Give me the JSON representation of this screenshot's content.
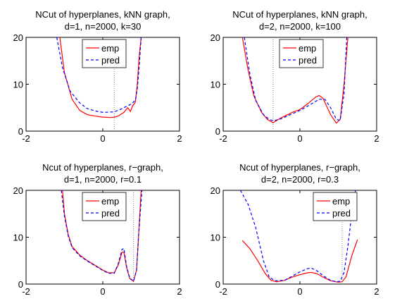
{
  "colors": {
    "emp": "#ff0000",
    "pred": "#0000ff",
    "vline": "#888888"
  },
  "chart_data": [
    {
      "type": "line",
      "title": [
        "NCut of hyperplanes, kNN graph,",
        "d=1, n=2000, k=30"
      ],
      "xlim": [
        -2,
        2
      ],
      "ylim": [
        0,
        20
      ],
      "xticks": [
        -2,
        0,
        2
      ],
      "yticks": [
        0,
        10,
        20
      ],
      "vline": 0.3,
      "legend": "top-center",
      "series": [
        {
          "name": "emp",
          "style": "solid",
          "x": [
            -1.12,
            -1.0,
            -0.8,
            -0.6,
            -0.4,
            -0.2,
            0.0,
            0.2,
            0.3,
            0.4,
            0.55,
            0.65,
            0.72,
            0.78,
            0.85,
            0.9,
            0.95,
            1.0
          ],
          "y": [
            20,
            12.5,
            6.8,
            4.4,
            3.5,
            3.2,
            3.0,
            2.9,
            3.0,
            3.2,
            4.0,
            5.0,
            4.2,
            5.4,
            6.2,
            10,
            16,
            20
          ]
        },
        {
          "name": "pred",
          "style": "dashed",
          "x": [
            -1.2,
            -1.05,
            -0.85,
            -0.6,
            -0.4,
            -0.2,
            0.0,
            0.3,
            0.45,
            0.6,
            0.75,
            0.85,
            0.9,
            0.95,
            1.0
          ],
          "y": [
            20,
            13.5,
            8.5,
            6.0,
            4.8,
            4.3,
            4.0,
            4.1,
            4.6,
            5.2,
            5.8,
            6.6,
            9,
            14,
            20
          ]
        }
      ]
    },
    {
      "type": "line",
      "title": [
        "NCut of hyperplanes, kNN graph,",
        "d=2, n=2000, k=100"
      ],
      "xlim": [
        -2,
        2
      ],
      "ylim": [
        0,
        20
      ],
      "xticks": [
        -2,
        0,
        2
      ],
      "yticks": [
        0,
        10,
        20
      ],
      "vline": -0.7,
      "legend": "top-center",
      "series": [
        {
          "name": "emp",
          "style": "solid",
          "x": [
            -1.5,
            -1.35,
            -1.2,
            -1.0,
            -0.85,
            -0.7,
            -0.5,
            -0.2,
            0.0,
            0.2,
            0.4,
            0.5,
            0.6,
            0.8,
            0.95,
            1.05,
            1.15,
            1.25
          ],
          "y": [
            20,
            13,
            7.5,
            4.0,
            2.5,
            1.8,
            2.8,
            4.0,
            4.6,
            5.8,
            7.2,
            7.6,
            7.0,
            3.5,
            1.7,
            2.5,
            10,
            20
          ]
        },
        {
          "name": "pred",
          "style": "dashed",
          "x": [
            -1.45,
            -1.3,
            -1.15,
            -0.95,
            -0.8,
            -0.7,
            -0.5,
            -0.2,
            0.0,
            0.3,
            0.5,
            0.65,
            0.8,
            0.95,
            1.05,
            1.15,
            1.22
          ],
          "y": [
            20,
            12,
            6.5,
            3.5,
            2.5,
            2.2,
            2.6,
            3.7,
            4.4,
            5.8,
            6.8,
            6.8,
            5.0,
            2.5,
            2.3,
            8,
            20
          ]
        }
      ]
    },
    {
      "type": "line",
      "title": [
        "Ncut of hyperplanes, r−graph,",
        "d=1, n=2000, r=0.1"
      ],
      "xlim": [
        -2,
        2
      ],
      "ylim": [
        0,
        20
      ],
      "xticks": [
        -2,
        0,
        2
      ],
      "yticks": [
        0,
        10,
        20
      ],
      "vline": 0.8,
      "legend": "top-center",
      "series": [
        {
          "name": "emp",
          "style": "solid",
          "x": [
            -1.05,
            -1.0,
            -0.9,
            -0.8,
            -0.6,
            -0.4,
            -0.2,
            0.0,
            0.15,
            0.3,
            0.4,
            0.5,
            0.55,
            0.62,
            0.7,
            0.8,
            0.88,
            0.93,
            1.0
          ],
          "y": [
            20,
            15,
            10.5,
            8.0,
            6.2,
            5.0,
            4.0,
            3.0,
            2.4,
            2.4,
            4.0,
            6.8,
            6.8,
            3.5,
            1.2,
            0.6,
            3.0,
            10,
            20
          ]
        },
        {
          "name": "pred",
          "style": "dashed",
          "x": [
            -1.08,
            -1.0,
            -0.9,
            -0.8,
            -0.6,
            -0.4,
            -0.2,
            0.0,
            0.15,
            0.3,
            0.4,
            0.5,
            0.55,
            0.62,
            0.7,
            0.8,
            0.88,
            0.93,
            1.02
          ],
          "y": [
            20,
            14.5,
            10.2,
            7.8,
            6.0,
            4.9,
            3.9,
            2.9,
            2.3,
            2.3,
            4.3,
            7.4,
            7.6,
            3.8,
            1.3,
            0.6,
            3.0,
            10,
            20
          ]
        }
      ]
    },
    {
      "type": "line",
      "title": [
        "Ncut of hyperplanes, r−graph,",
        "d=2, n=2000, r=0.3"
      ],
      "xlim": [
        -2,
        2
      ],
      "ylim": [
        0,
        20
      ],
      "xticks": [
        -2,
        0,
        2
      ],
      "yticks": [
        0,
        10,
        20
      ],
      "vline": 1.1,
      "legend": "top-right",
      "series": [
        {
          "name": "emp",
          "style": "solid",
          "x": [
            -1.5,
            -1.3,
            -1.1,
            -0.9,
            -0.75,
            -0.6,
            -0.4,
            -0.2,
            0.0,
            0.2,
            0.3,
            0.45,
            0.6,
            0.8,
            1.0,
            1.1,
            1.2,
            1.35,
            1.5
          ],
          "y": [
            9.3,
            7.5,
            5.0,
            2.2,
            0.8,
            0.5,
            0.8,
            1.5,
            2.0,
            2.4,
            2.5,
            2.2,
            1.5,
            0.7,
            0.4,
            0.5,
            1.5,
            6.0,
            9.5
          ]
        },
        {
          "name": "pred",
          "style": "dashed",
          "x": [
            -1.55,
            -1.35,
            -1.15,
            -0.95,
            -0.8,
            -0.65,
            -0.4,
            -0.2,
            0.0,
            0.2,
            0.3,
            0.45,
            0.6,
            0.8,
            0.95,
            1.05,
            1.15,
            1.25,
            1.35,
            1.45
          ],
          "y": [
            20,
            17,
            12,
            5.0,
            1.5,
            0.7,
            0.8,
            1.7,
            2.6,
            3.3,
            3.4,
            2.8,
            1.8,
            0.8,
            0.5,
            0.6,
            2.5,
            8,
            15,
            20
          ]
        }
      ]
    }
  ]
}
